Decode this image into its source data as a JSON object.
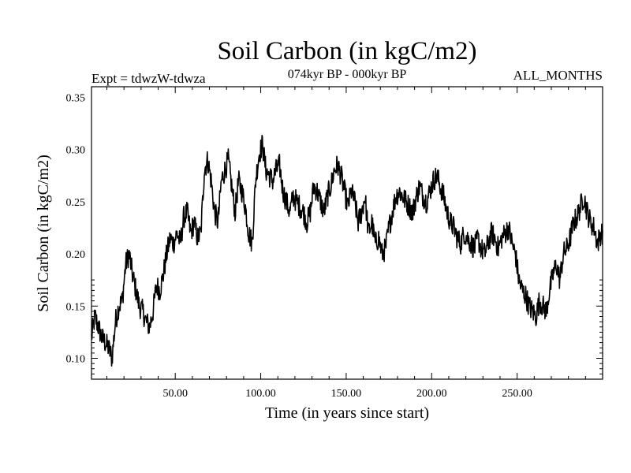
{
  "chart_data": {
    "type": "line",
    "title": "Soil Carbon (in kgC/m2)",
    "subtitle": "074kyr BP - 000kyr BP",
    "left_label": "Expt = tdwzW-tdwza",
    "right_label": "ALL_MONTHS",
    "xlabel": "Time (in years since start)",
    "ylabel": "Soil Carbon (in kgC/m2)",
    "xlim": [
      1,
      300
    ],
    "ylim": [
      0.08,
      0.36
    ],
    "xticks": [
      50,
      100,
      150,
      200,
      250
    ],
    "xtick_labels": [
      "50.00",
      "100.00",
      "150.00",
      "200.00",
      "250.00"
    ],
    "yticks": [
      0.1,
      0.15,
      0.2,
      0.25,
      0.3,
      0.35
    ],
    "ytick_labels": [
      "0.10",
      "0.15",
      "0.20",
      "0.25",
      "0.30",
      "0.35"
    ],
    "line_color": "#000000",
    "series": [
      {
        "x": [
          1,
          3,
          5,
          7,
          9,
          11,
          13,
          15,
          17,
          19,
          21,
          23,
          25,
          27,
          29,
          31,
          33,
          35,
          37,
          39,
          41,
          43,
          45,
          47,
          49,
          51,
          53,
          55,
          57,
          59,
          61,
          63,
          65,
          67,
          69,
          71,
          73,
          75,
          77,
          79,
          81,
          83,
          85,
          87,
          89,
          91,
          93,
          95,
          97,
          99,
          101,
          103,
          105,
          107,
          109,
          111,
          113,
          115,
          117,
          119,
          121,
          123,
          125,
          127,
          129,
          131,
          133,
          135,
          137,
          139,
          141,
          143,
          145,
          147,
          149,
          151,
          153,
          155,
          157,
          159,
          161,
          163,
          165,
          167,
          169,
          171,
          173,
          175,
          177,
          179,
          181,
          183,
          185,
          187,
          189,
          191,
          193,
          195,
          197,
          199,
          201,
          203,
          205,
          207,
          209,
          211,
          213,
          215,
          217,
          219,
          221,
          223,
          225,
          227,
          229,
          231,
          233,
          235,
          237,
          239,
          241,
          243,
          245,
          247,
          249,
          251,
          253,
          255,
          257,
          259,
          261,
          263,
          265,
          267,
          269,
          271,
          273,
          275,
          277,
          279,
          281,
          283,
          285,
          287,
          289,
          291,
          293,
          295,
          297,
          299
        ],
        "values": [
          0.12,
          0.14,
          0.13,
          0.12,
          0.115,
          0.11,
          0.1,
          0.135,
          0.15,
          0.155,
          0.19,
          0.2,
          0.18,
          0.165,
          0.15,
          0.145,
          0.135,
          0.13,
          0.145,
          0.17,
          0.165,
          0.18,
          0.2,
          0.215,
          0.21,
          0.22,
          0.21,
          0.235,
          0.24,
          0.22,
          0.23,
          0.215,
          0.22,
          0.28,
          0.29,
          0.27,
          0.24,
          0.23,
          0.27,
          0.28,
          0.29,
          0.265,
          0.24,
          0.27,
          0.26,
          0.245,
          0.22,
          0.21,
          0.27,
          0.295,
          0.305,
          0.28,
          0.275,
          0.27,
          0.28,
          0.285,
          0.26,
          0.25,
          0.24,
          0.255,
          0.25,
          0.245,
          0.24,
          0.23,
          0.24,
          0.265,
          0.26,
          0.25,
          0.24,
          0.255,
          0.265,
          0.28,
          0.285,
          0.275,
          0.26,
          0.245,
          0.26,
          0.25,
          0.23,
          0.24,
          0.255,
          0.22,
          0.23,
          0.21,
          0.215,
          0.2,
          0.205,
          0.225,
          0.24,
          0.255,
          0.26,
          0.255,
          0.25,
          0.245,
          0.24,
          0.255,
          0.265,
          0.255,
          0.25,
          0.26,
          0.27,
          0.275,
          0.265,
          0.255,
          0.24,
          0.23,
          0.225,
          0.215,
          0.21,
          0.22,
          0.215,
          0.21,
          0.205,
          0.215,
          0.205,
          0.2,
          0.21,
          0.22,
          0.215,
          0.205,
          0.215,
          0.22,
          0.225,
          0.21,
          0.2,
          0.175,
          0.165,
          0.16,
          0.15,
          0.145,
          0.14,
          0.155,
          0.15,
          0.145,
          0.165,
          0.18,
          0.19,
          0.175,
          0.2,
          0.205,
          0.215,
          0.23,
          0.235,
          0.245,
          0.255,
          0.24,
          0.23,
          0.225,
          0.21,
          0.22
        ]
      }
    ]
  }
}
